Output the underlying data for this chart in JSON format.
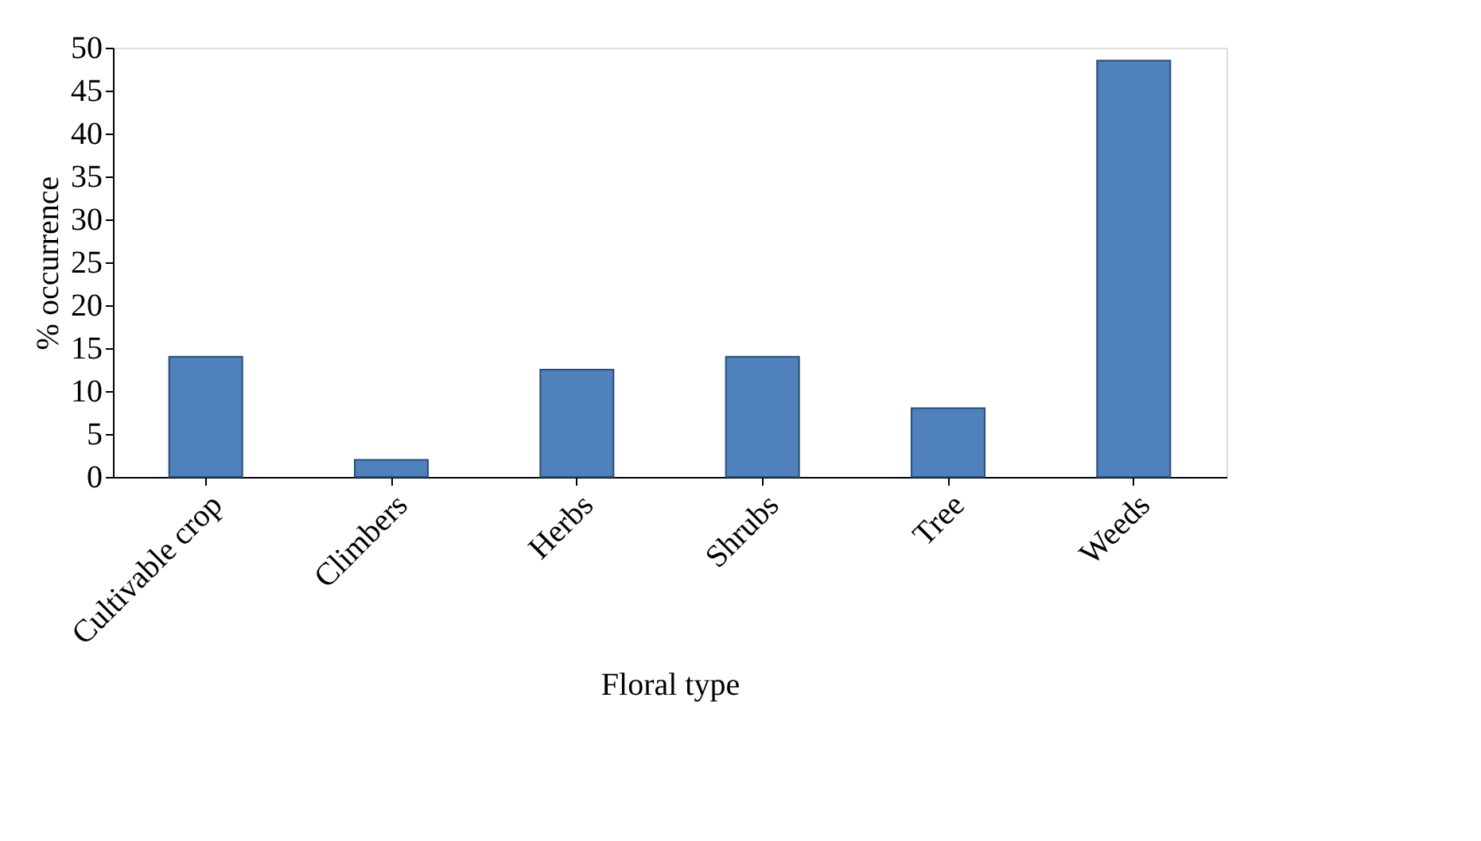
{
  "chart_data": {
    "type": "bar",
    "categories": [
      "Cultivable crop",
      "Climbers",
      "Herbs",
      "Shrubs",
      "Tree",
      "Weeds"
    ],
    "values": [
      14,
      2,
      12.5,
      14,
      8,
      48.5
    ],
    "color": "#4f81bd",
    "xlabel": "Floral type",
    "ylabel": "% occurrence",
    "ylim": [
      0,
      50
    ],
    "yticks": [
      0,
      5,
      10,
      15,
      20,
      25,
      30,
      35,
      40,
      45,
      50
    ],
    "grid": false
  }
}
